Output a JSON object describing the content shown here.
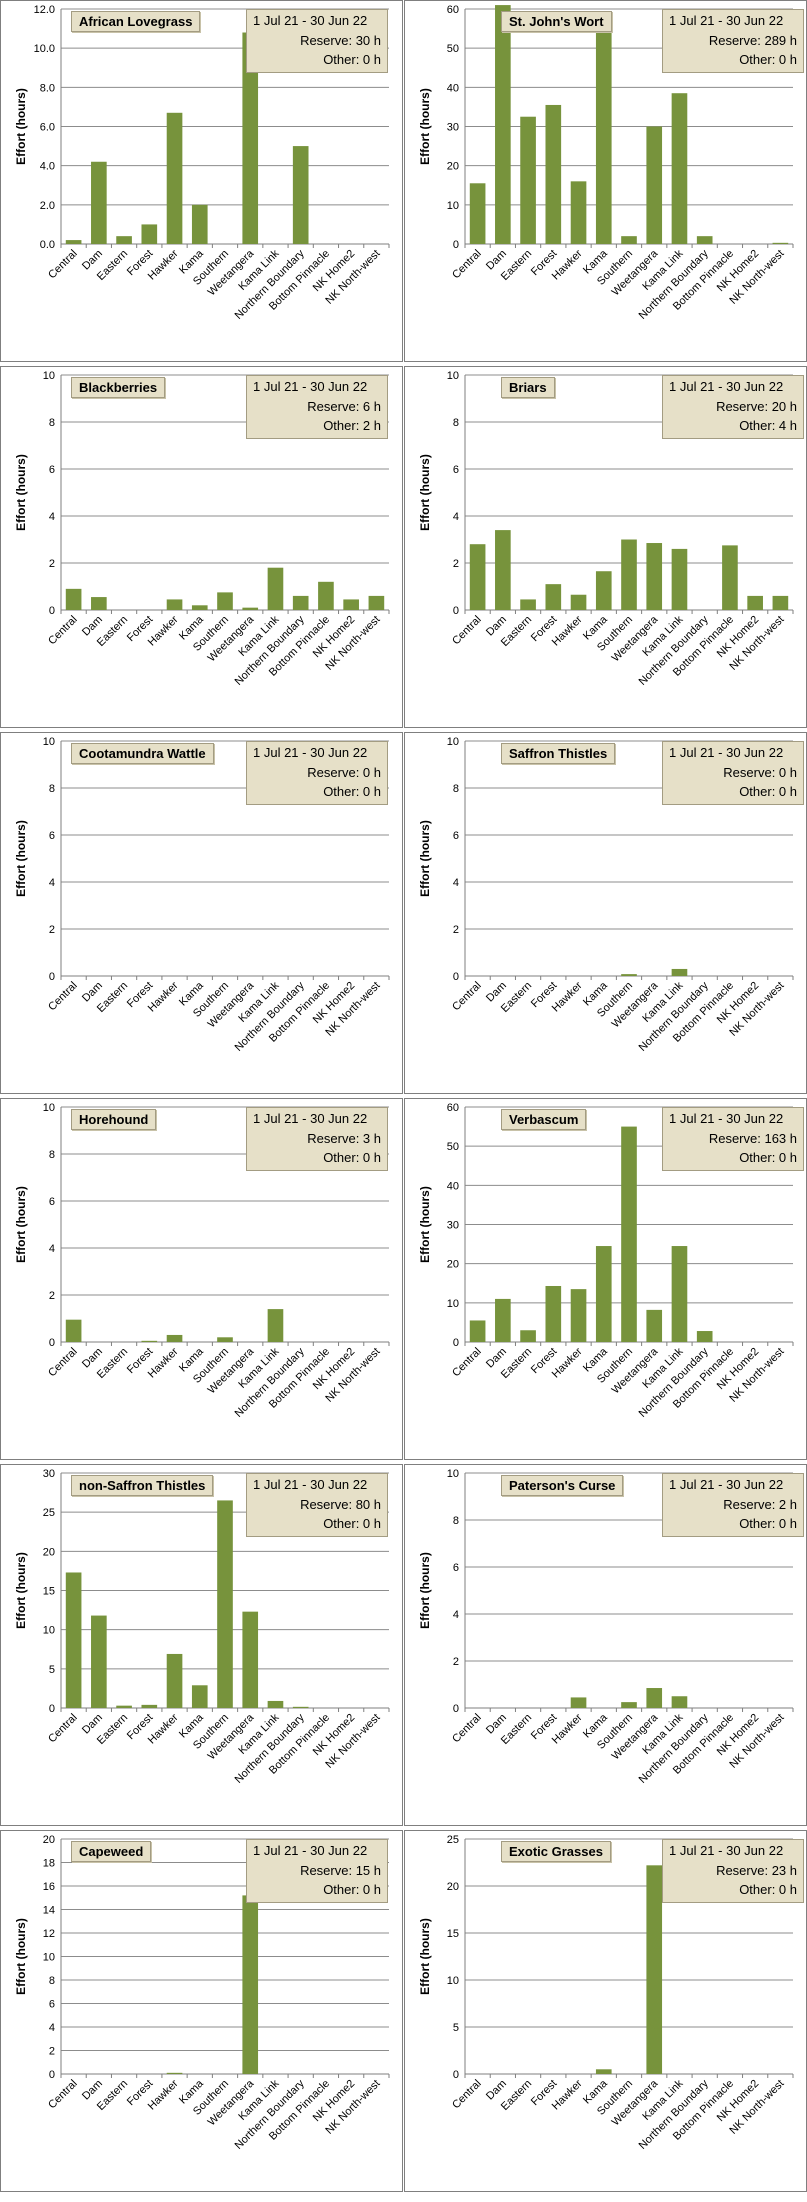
{
  "common": {
    "period": "1 Jul 21  -  30 Jun 22",
    "ylabel": "Effort  (hours)",
    "categories": [
      "Central",
      "Dam",
      "Eastern",
      "Forest",
      "Hawker",
      "Kama",
      "Southern",
      "Weetangera",
      "Kama Link",
      "Northern Boundary",
      "Bottom Pinnacle",
      "NK Home2",
      "NK North-west"
    ],
    "bar_color": "#77933c"
  },
  "chart_data": [
    {
      "type": "bar",
      "title": "African Lovegrass",
      "reserve": "Reserve: 30 h",
      "other": "Other: 0 h",
      "ylim": [
        0,
        12
      ],
      "ticks": [
        "0.0",
        "2.0",
        "4.0",
        "6.0",
        "8.0",
        "10.0",
        "12.0"
      ],
      "categories": [
        "Central",
        "Dam",
        "Eastern",
        "Forest",
        "Hawker",
        "Kama",
        "Southern",
        "Weetangera",
        "Kama Link",
        "Northern Boundary",
        "Bottom Pinnacle",
        "NK Home2",
        "NK North-west"
      ],
      "values": [
        0.2,
        4.2,
        0.4,
        1.0,
        6.7,
        2.0,
        0,
        10.8,
        0,
        5.0,
        0,
        0,
        0
      ]
    },
    {
      "type": "bar",
      "title": "St. John's Wort",
      "reserve": "Reserve: 289 h",
      "other": "Other: 0 h",
      "ylim": [
        0,
        60
      ],
      "ticks": [
        "0",
        "10",
        "20",
        "30",
        "40",
        "50",
        "60"
      ],
      "categories": [
        "Central",
        "Dam",
        "Eastern",
        "Forest",
        "Hawker",
        "Kama",
        "Southern",
        "Weetangera",
        "Kama Link",
        "Northern Boundary",
        "Bottom Pinnacle",
        "NK Home2",
        "NK North-west"
      ],
      "values": [
        15.5,
        61,
        32.5,
        35.5,
        16,
        54.5,
        2,
        30,
        38.5,
        2,
        0,
        0,
        0.3
      ]
    },
    {
      "type": "bar",
      "title": "Blackberries",
      "reserve": "Reserve: 6 h",
      "other": "Other: 2 h",
      "ylim": [
        0,
        10
      ],
      "ticks": [
        "0",
        "2",
        "4",
        "6",
        "8",
        "10"
      ],
      "categories": [
        "Central",
        "Dam",
        "Eastern",
        "Forest",
        "Hawker",
        "Kama",
        "Southern",
        "Weetangera",
        "Kama Link",
        "Northern Boundary",
        "Bottom Pinnacle",
        "NK Home2",
        "NK North-west"
      ],
      "values": [
        0.9,
        0.55,
        0,
        0,
        0.45,
        0.2,
        0.75,
        0.1,
        1.8,
        0.6,
        1.2,
        0.45,
        0.6
      ]
    },
    {
      "type": "bar",
      "title": "Briars",
      "reserve": "Reserve: 20 h",
      "other": "Other: 4 h",
      "ylim": [
        0,
        10
      ],
      "ticks": [
        "0",
        "2",
        "4",
        "6",
        "8",
        "10"
      ],
      "categories": [
        "Central",
        "Dam",
        "Eastern",
        "Forest",
        "Hawker",
        "Kama",
        "Southern",
        "Weetangera",
        "Kama Link",
        "Northern Boundary",
        "Bottom Pinnacle",
        "NK Home2",
        "NK North-west"
      ],
      "values": [
        2.8,
        3.4,
        0.45,
        1.1,
        0.65,
        1.65,
        3.0,
        2.85,
        2.6,
        0,
        2.75,
        0.6,
        0.6
      ]
    },
    {
      "type": "bar",
      "title": "Cootamundra Wattle",
      "reserve": "Reserve: 0 h",
      "other": "Other: 0 h",
      "ylim": [
        0,
        10
      ],
      "ticks": [
        "0",
        "2",
        "4",
        "6",
        "8",
        "10"
      ],
      "categories": [
        "Central",
        "Dam",
        "Eastern",
        "Forest",
        "Hawker",
        "Kama",
        "Southern",
        "Weetangera",
        "Kama Link",
        "Northern Boundary",
        "Bottom Pinnacle",
        "NK Home2",
        "NK North-west"
      ],
      "values": [
        0,
        0,
        0,
        0,
        0,
        0,
        0,
        0,
        0,
        0,
        0,
        0,
        0
      ]
    },
    {
      "type": "bar",
      "title": "Saffron Thistles",
      "reserve": "Reserve: 0 h",
      "other": "Other: 0 h",
      "ylim": [
        0,
        10
      ],
      "ticks": [
        "0",
        "2",
        "4",
        "6",
        "8",
        "10"
      ],
      "categories": [
        "Central",
        "Dam",
        "Eastern",
        "Forest",
        "Hawker",
        "Kama",
        "Southern",
        "Weetangera",
        "Kama Link",
        "Northern Boundary",
        "Bottom Pinnacle",
        "NK Home2",
        "NK North-west"
      ],
      "values": [
        0,
        0,
        0,
        0,
        0,
        0,
        0.08,
        0,
        0.3,
        0,
        0,
        0,
        0
      ]
    },
    {
      "type": "bar",
      "title": "Horehound",
      "reserve": "Reserve: 3 h",
      "other": "Other: 0 h",
      "ylim": [
        0,
        10
      ],
      "ticks": [
        "0",
        "2",
        "4",
        "6",
        "8",
        "10"
      ],
      "categories": [
        "Central",
        "Dam",
        "Eastern",
        "Forest",
        "Hawker",
        "Kama",
        "Southern",
        "Weetangera",
        "Kama Link",
        "Northern Boundary",
        "Bottom Pinnacle",
        "NK Home2",
        "NK North-west"
      ],
      "values": [
        0.95,
        0,
        0,
        0.05,
        0.3,
        0,
        0.2,
        0,
        1.4,
        0,
        0,
        0,
        0
      ]
    },
    {
      "type": "bar",
      "title": "Verbascum",
      "reserve": "Reserve: 163 h",
      "other": "Other: 0 h",
      "ylim": [
        0,
        60
      ],
      "ticks": [
        "0",
        "10",
        "20",
        "30",
        "40",
        "50",
        "60"
      ],
      "categories": [
        "Central",
        "Dam",
        "Eastern",
        "Forest",
        "Hawker",
        "Kama",
        "Southern",
        "Weetangera",
        "Kama Link",
        "Northern Boundary",
        "Bottom Pinnacle",
        "NK Home2",
        "NK North-west"
      ],
      "values": [
        5.5,
        11,
        3,
        14.3,
        13.5,
        24.5,
        55,
        8.2,
        24.5,
        2.8,
        0,
        0,
        0
      ]
    },
    {
      "type": "bar",
      "title": "non-Saffron Thistles",
      "reserve": "Reserve: 80 h",
      "other": "Other: 0 h",
      "ylim": [
        0,
        30
      ],
      "ticks": [
        "0",
        "5",
        "10",
        "15",
        "20",
        "25",
        "30"
      ],
      "categories": [
        "Central",
        "Dam",
        "Eastern",
        "Forest",
        "Hawker",
        "Kama",
        "Southern",
        "Weetangera",
        "Kama Link",
        "Northern Boundary",
        "Bottom Pinnacle",
        "NK Home2",
        "NK North-west"
      ],
      "values": [
        17.3,
        11.8,
        0.3,
        0.4,
        6.9,
        2.9,
        26.5,
        12.3,
        0.9,
        0.15,
        0,
        0,
        0
      ]
    },
    {
      "type": "bar",
      "title": "Paterson's Curse",
      "reserve": "Reserve: 2 h",
      "other": "Other: 0 h",
      "ylim": [
        0,
        10
      ],
      "ticks": [
        "0",
        "2",
        "4",
        "6",
        "8",
        "10"
      ],
      "categories": [
        "Central",
        "Dam",
        "Eastern",
        "Forest",
        "Hawker",
        "Kama",
        "Southern",
        "Weetangera",
        "Kama Link",
        "Northern Boundary",
        "Bottom Pinnacle",
        "NK Home2",
        "NK North-west"
      ],
      "values": [
        0,
        0,
        0,
        0,
        0.45,
        0,
        0.25,
        0.85,
        0.5,
        0,
        0,
        0,
        0
      ]
    },
    {
      "type": "bar",
      "title": "Capeweed",
      "reserve": "Reserve: 15 h",
      "other": "Other: 0 h",
      "ylim": [
        0,
        20
      ],
      "ticks": [
        "0",
        "2",
        "4",
        "6",
        "8",
        "10",
        "12",
        "14",
        "16",
        "18",
        "20"
      ],
      "categories": [
        "Central",
        "Dam",
        "Eastern",
        "Forest",
        "Hawker",
        "Kama",
        "Southern",
        "Weetangera",
        "Kama Link",
        "Northern Boundary",
        "Bottom Pinnacle",
        "NK Home2",
        "NK North-west"
      ],
      "values": [
        0,
        0,
        0,
        0,
        0.1,
        0,
        0,
        15.2,
        0,
        0,
        0,
        0,
        0
      ]
    },
    {
      "type": "bar",
      "title": "Exotic Grasses",
      "reserve": "Reserve: 23 h",
      "other": "Other: 0 h",
      "ylim": [
        0,
        25
      ],
      "ticks": [
        "0",
        "5",
        "10",
        "15",
        "20",
        "25"
      ],
      "categories": [
        "Central",
        "Dam",
        "Eastern",
        "Forest",
        "Hawker",
        "Kama",
        "Southern",
        "Weetangera",
        "Kama Link",
        "Northern Boundary",
        "Bottom Pinnacle",
        "NK Home2",
        "NK North-west"
      ],
      "values": [
        0,
        0,
        0,
        0,
        0,
        0.5,
        0,
        22.2,
        0,
        0,
        0,
        0,
        0
      ]
    }
  ]
}
